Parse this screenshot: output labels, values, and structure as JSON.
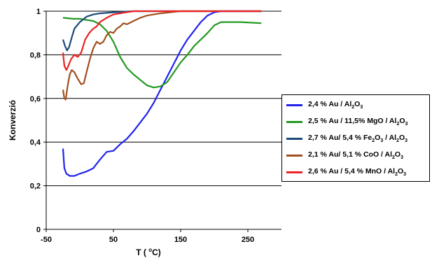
{
  "chart_data": {
    "type": "line",
    "title": "",
    "xlabel": "T (°C)",
    "ylabel": "Konverzió",
    "xlim": [
      -50,
      300
    ],
    "ylim": [
      0,
      1
    ],
    "xticks": [
      "-50",
      "50",
      "150",
      "250"
    ],
    "xtick_values": [
      -50,
      50,
      150,
      250
    ],
    "yticks": [
      "0",
      "0,2",
      "0,4",
      "0,6",
      "0,8",
      "1"
    ],
    "ytick_values": [
      0,
      0.2,
      0.4,
      0.6,
      0.8,
      1
    ],
    "grid": "horizontal",
    "legend_position": "right",
    "series": [
      {
        "name": "2,4 % Au / Al2O3",
        "color": "#2222ee",
        "points": [
          [
            -25,
            0.37
          ],
          [
            -23,
            0.28
          ],
          [
            -20,
            0.255
          ],
          [
            -15,
            0.245
          ],
          [
            -8,
            0.245
          ],
          [
            0,
            0.255
          ],
          [
            10,
            0.265
          ],
          [
            20,
            0.28
          ],
          [
            30,
            0.32
          ],
          [
            40,
            0.355
          ],
          [
            50,
            0.36
          ],
          [
            60,
            0.39
          ],
          [
            70,
            0.415
          ],
          [
            80,
            0.45
          ],
          [
            90,
            0.49
          ],
          [
            100,
            0.53
          ],
          [
            110,
            0.58
          ],
          [
            120,
            0.64
          ],
          [
            130,
            0.7
          ],
          [
            140,
            0.76
          ],
          [
            150,
            0.82
          ],
          [
            160,
            0.87
          ],
          [
            170,
            0.91
          ],
          [
            180,
            0.95
          ],
          [
            190,
            0.98
          ],
          [
            200,
            0.995
          ],
          [
            210,
            1.0
          ],
          [
            240,
            1.0
          ],
          [
            270,
            1.0
          ]
        ]
      },
      {
        "name": "2,5 % Au / 11,5% MgO / Al2O3",
        "color": "#229922",
        "points": [
          [
            -25,
            0.97
          ],
          [
            -10,
            0.965
          ],
          [
            0,
            0.965
          ],
          [
            10,
            0.96
          ],
          [
            20,
            0.955
          ],
          [
            30,
            0.94
          ],
          [
            40,
            0.91
          ],
          [
            50,
            0.86
          ],
          [
            60,
            0.79
          ],
          [
            70,
            0.74
          ],
          [
            80,
            0.71
          ],
          [
            90,
            0.685
          ],
          [
            100,
            0.66
          ],
          [
            110,
            0.65
          ],
          [
            120,
            0.655
          ],
          [
            130,
            0.675
          ],
          [
            140,
            0.72
          ],
          [
            150,
            0.765
          ],
          [
            160,
            0.8
          ],
          [
            170,
            0.84
          ],
          [
            180,
            0.87
          ],
          [
            190,
            0.9
          ],
          [
            200,
            0.935
          ],
          [
            210,
            0.95
          ],
          [
            240,
            0.95
          ],
          [
            270,
            0.945
          ]
        ]
      },
      {
        "name": "2,7 % Au/ 5,4 % Fe2O3 / Al2O3",
        "color": "#1a4a7a",
        "points": [
          [
            -25,
            0.87
          ],
          [
            -22,
            0.84
          ],
          [
            -19,
            0.82
          ],
          [
            -16,
            0.835
          ],
          [
            -12,
            0.88
          ],
          [
            -8,
            0.92
          ],
          [
            0,
            0.95
          ],
          [
            10,
            0.975
          ],
          [
            20,
            0.985
          ],
          [
            30,
            0.99
          ],
          [
            50,
            0.995
          ],
          [
            80,
            1.0
          ],
          [
            150,
            1.0
          ],
          [
            270,
            1.0
          ]
        ]
      },
      {
        "name": "2,1 % Au/ 5,1 % CoO / Al2O3",
        "color": "#a0501e",
        "points": [
          [
            -25,
            0.64
          ],
          [
            -23,
            0.6
          ],
          [
            -21,
            0.595
          ],
          [
            -18,
            0.66
          ],
          [
            -15,
            0.71
          ],
          [
            -12,
            0.73
          ],
          [
            -8,
            0.72
          ],
          [
            -3,
            0.69
          ],
          [
            2,
            0.665
          ],
          [
            6,
            0.67
          ],
          [
            10,
            0.72
          ],
          [
            15,
            0.78
          ],
          [
            20,
            0.83
          ],
          [
            25,
            0.86
          ],
          [
            30,
            0.85
          ],
          [
            35,
            0.86
          ],
          [
            40,
            0.89
          ],
          [
            45,
            0.905
          ],
          [
            50,
            0.9
          ],
          [
            55,
            0.92
          ],
          [
            60,
            0.93
          ],
          [
            65,
            0.945
          ],
          [
            70,
            0.94
          ],
          [
            80,
            0.955
          ],
          [
            90,
            0.97
          ],
          [
            100,
            0.98
          ],
          [
            120,
            0.99
          ],
          [
            150,
            1.0
          ],
          [
            270,
            1.0
          ]
        ]
      },
      {
        "name": "2,6 % Au / 5,4 % MnO / Al2O3",
        "color": "#ee2222",
        "points": [
          [
            -25,
            0.81
          ],
          [
            -23,
            0.75
          ],
          [
            -20,
            0.73
          ],
          [
            -17,
            0.75
          ],
          [
            -13,
            0.78
          ],
          [
            -8,
            0.8
          ],
          [
            -3,
            0.79
          ],
          [
            2,
            0.81
          ],
          [
            8,
            0.87
          ],
          [
            14,
            0.9
          ],
          [
            20,
            0.92
          ],
          [
            25,
            0.93
          ],
          [
            30,
            0.95
          ],
          [
            40,
            0.97
          ],
          [
            50,
            0.985
          ],
          [
            60,
            0.99
          ],
          [
            80,
            1.0
          ],
          [
            150,
            1.0
          ],
          [
            270,
            1.0
          ]
        ]
      }
    ]
  },
  "legend": {
    "items": [
      {
        "pre": "2,4 % Au / Al",
        "sub1": "2",
        "mid": "O",
        "sub2": "3",
        "post": "",
        "color": "#2222ee"
      },
      {
        "pre": "2,5 % Au / 11,5% MgO / Al",
        "sub1": "2",
        "mid": "O",
        "sub2": "3",
        "post": "",
        "color": "#229922"
      },
      {
        "pre": "2,7 % Au/ 5,4 % Fe",
        "sub1": "2",
        "mid": "O",
        "sub2": "3",
        "post": " / Al2O3",
        "color": "#1a4a7a"
      },
      {
        "pre": "2,1 % Au/ 5,1 % CoO / Al",
        "sub1": "2",
        "mid": "O",
        "sub2": "3",
        "post": "",
        "color": "#a0501e"
      },
      {
        "pre": "2,6 % Au / 5,4 % MnO / Al",
        "sub1": "2",
        "mid": "O",
        "sub2": "3",
        "post": "",
        "color": "#ee2222"
      }
    ]
  }
}
